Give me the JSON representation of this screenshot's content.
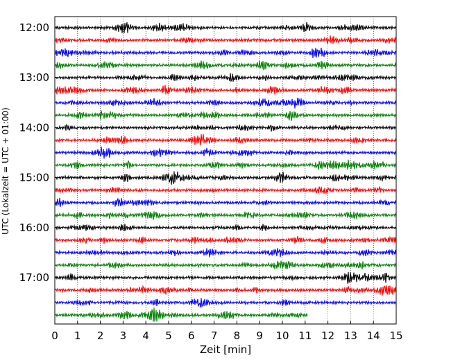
{
  "chart_data": {
    "type": "line",
    "title": "",
    "xlabel": "Zeit  [min]",
    "ylabel": "UTC (Lokalzeit = UTC + 01:00)",
    "xlim": [
      0,
      15
    ],
    "x_ticks": [
      0,
      1,
      2,
      3,
      4,
      5,
      6,
      7,
      8,
      9,
      10,
      11,
      12,
      13,
      14,
      15
    ],
    "y_ticks": [
      "12:00",
      "13:00",
      "14:00",
      "15:00",
      "16:00",
      "17:00"
    ],
    "row_interval_minutes": 15,
    "grid": "vertical dotted lines at each minute",
    "trace_colors": [
      "#000000",
      "#ff0000",
      "#0000ff",
      "#008000"
    ],
    "rows": [
      {
        "start": "12:00",
        "color": "#000000",
        "duration_min": 15
      },
      {
        "start": "12:15",
        "color": "#ff0000",
        "duration_min": 15
      },
      {
        "start": "12:30",
        "color": "#0000ff",
        "duration_min": 15
      },
      {
        "start": "12:45",
        "color": "#008000",
        "duration_min": 15
      },
      {
        "start": "13:00",
        "color": "#000000",
        "duration_min": 15
      },
      {
        "start": "13:15",
        "color": "#ff0000",
        "duration_min": 15
      },
      {
        "start": "13:30",
        "color": "#0000ff",
        "duration_min": 15
      },
      {
        "start": "13:45",
        "color": "#008000",
        "duration_min": 15
      },
      {
        "start": "14:00",
        "color": "#000000",
        "duration_min": 15
      },
      {
        "start": "14:15",
        "color": "#ff0000",
        "duration_min": 15
      },
      {
        "start": "14:30",
        "color": "#0000ff",
        "duration_min": 15
      },
      {
        "start": "14:45",
        "color": "#008000",
        "duration_min": 15
      },
      {
        "start": "15:00",
        "color": "#000000",
        "duration_min": 15
      },
      {
        "start": "15:15",
        "color": "#ff0000",
        "duration_min": 15
      },
      {
        "start": "15:30",
        "color": "#0000ff",
        "duration_min": 15
      },
      {
        "start": "15:45",
        "color": "#008000",
        "duration_min": 15
      },
      {
        "start": "16:00",
        "color": "#000000",
        "duration_min": 15
      },
      {
        "start": "16:15",
        "color": "#ff0000",
        "duration_min": 15
      },
      {
        "start": "16:30",
        "color": "#0000ff",
        "duration_min": 15
      },
      {
        "start": "16:45",
        "color": "#008000",
        "duration_min": 15
      },
      {
        "start": "17:00",
        "color": "#000000",
        "duration_min": 15
      },
      {
        "start": "17:15",
        "color": "#ff0000",
        "duration_min": 15
      },
      {
        "start": "17:30",
        "color": "#0000ff",
        "duration_min": 15
      },
      {
        "start": "17:45",
        "color": "#008000",
        "duration_min": 11.1
      }
    ]
  }
}
